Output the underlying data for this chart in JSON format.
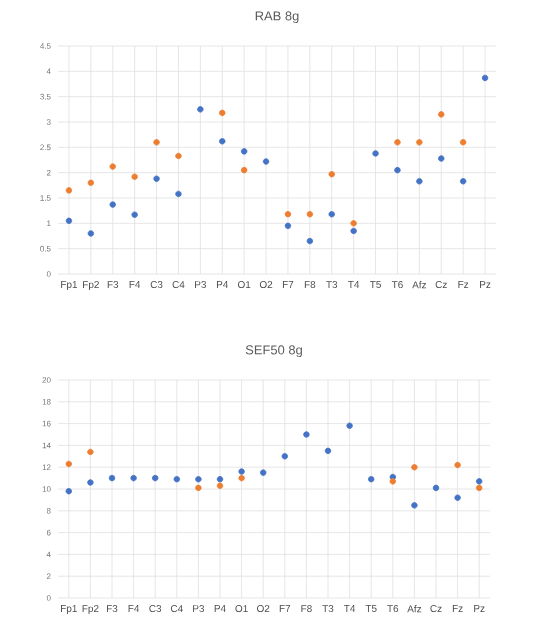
{
  "chart_data": [
    {
      "type": "scatter",
      "title": "RAB  8g",
      "categories": [
        "Fp1",
        "Fp2",
        "F3",
        "F4",
        "C3",
        "C4",
        "P3",
        "P4",
        "O1",
        "O2",
        "F7",
        "F8",
        "T3",
        "T4",
        "T5",
        "T6",
        "Afz",
        "Cz",
        "Fz",
        "Pz"
      ],
      "series": [
        {
          "color": "#4472c4",
          "values": [
            1.05,
            0.8,
            1.37,
            1.17,
            1.88,
            1.58,
            3.25,
            2.62,
            2.42,
            2.22,
            0.95,
            0.65,
            1.18,
            0.85,
            2.38,
            2.05,
            1.83,
            2.28,
            1.83,
            3.87
          ]
        },
        {
          "color": "#ed7d31",
          "values": [
            1.65,
            1.8,
            2.12,
            1.92,
            2.6,
            2.33,
            null,
            3.18,
            2.05,
            null,
            1.18,
            1.18,
            1.97,
            1.0,
            null,
            2.6,
            2.6,
            3.15,
            2.6,
            null
          ]
        }
      ],
      "ylim": [
        0,
        4.5
      ],
      "yticks": [
        0,
        0.5,
        1,
        1.5,
        2,
        2.5,
        3,
        3.5,
        4,
        4.5
      ],
      "grid": true,
      "marker": "circle"
    },
    {
      "type": "scatter",
      "title": "SEF50 8g",
      "categories": [
        "Fp1",
        "Fp2",
        "F3",
        "F4",
        "C3",
        "C4",
        "P3",
        "P4",
        "O1",
        "O2",
        "F7",
        "F8",
        "T3",
        "T4",
        "T5",
        "T6",
        "Afz",
        "Cz",
        "Fz",
        "Pz"
      ],
      "series": [
        {
          "color": "#4472c4",
          "values": [
            9.8,
            10.6,
            11.0,
            11.0,
            11.0,
            10.9,
            10.9,
            10.9,
            11.6,
            11.5,
            13.0,
            15.0,
            13.5,
            15.8,
            10.9,
            11.1,
            8.5,
            10.1,
            9.2,
            10.7
          ]
        },
        {
          "color": "#ed7d31",
          "values": [
            12.3,
            13.4,
            null,
            null,
            null,
            null,
            10.1,
            10.3,
            11.0,
            null,
            null,
            null,
            null,
            null,
            null,
            10.7,
            12.0,
            null,
            12.2,
            10.1
          ]
        }
      ],
      "ylim": [
        0,
        20
      ],
      "yticks": [
        0,
        2,
        4,
        6,
        8,
        10,
        12,
        14,
        16,
        18,
        20
      ],
      "grid": true,
      "marker": "circle"
    }
  ]
}
